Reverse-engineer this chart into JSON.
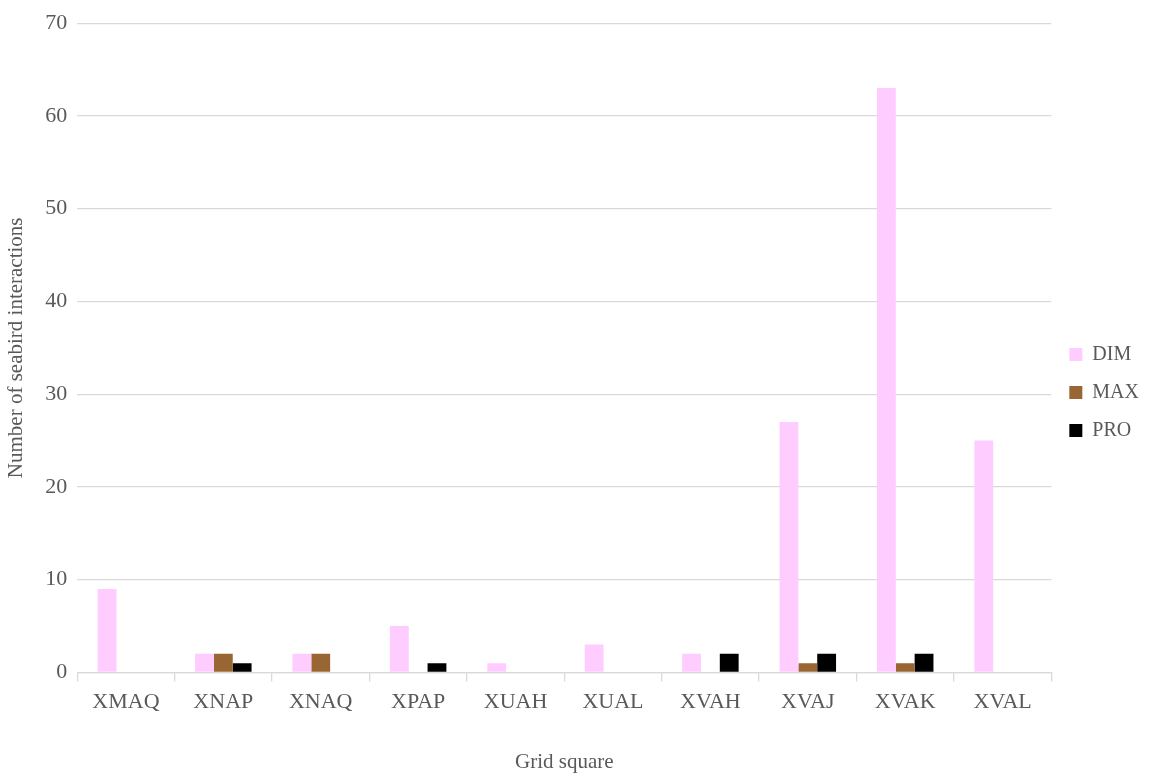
{
  "chart_data": {
    "type": "bar",
    "xlabel": "Grid square",
    "ylabel": "Number of seabird interactions",
    "categories": [
      "XMAQ",
      "XNAP",
      "XNAQ",
      "XPAP",
      "XUAH",
      "XUAL",
      "XVAH",
      "XVAJ",
      "XVAK",
      "XVAL"
    ],
    "series": [
      {
        "name": "DIM",
        "color": "#ffccff",
        "values": [
          9,
          2,
          2,
          5,
          1,
          3,
          2,
          27,
          63,
          25
        ]
      },
      {
        "name": "MAX",
        "color": "#996633",
        "values": [
          null,
          2,
          2,
          null,
          null,
          null,
          null,
          1,
          1,
          null
        ]
      },
      {
        "name": "PRO",
        "color": "#000000",
        "values": [
          null,
          1,
          null,
          1,
          null,
          null,
          2,
          2,
          2,
          null
        ]
      }
    ],
    "ylim": [
      0,
      70
    ],
    "yticks": [
      0,
      10,
      20,
      30,
      40,
      50,
      60,
      70
    ],
    "grid": "y",
    "legend": "right"
  }
}
